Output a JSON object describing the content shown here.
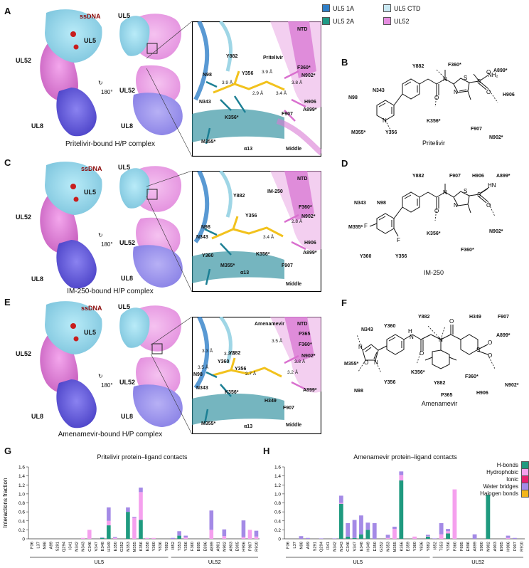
{
  "panel_letters": [
    "A",
    "B",
    "C",
    "D",
    "E",
    "F",
    "G",
    "H"
  ],
  "legend": [
    {
      "label": "UL5 1A",
      "color": "#2f7fc8"
    },
    {
      "label": "UL5 CTD",
      "color": "#c9e8f2"
    },
    {
      "label": "UL5 2A",
      "color": "#1f9a85"
    },
    {
      "label": "UL52",
      "color": "#e58de0"
    }
  ],
  "rows": [
    {
      "caption": "Pritelivir-bound H/P complex",
      "map_labels": {
        "ssdna": "ssDNA",
        "ul5": "UL5",
        "ul52": "UL52",
        "ul8": "UL8",
        "ul5b": "UL5",
        "ul52b": "UL52",
        "ul8b": "UL8",
        "rot": "180°"
      },
      "zoom_labels": [
        "NTD",
        "Y882",
        "Pritelivir",
        "F360*",
        "N902*",
        "Y356",
        "N98",
        "N343",
        "H906",
        "A899*",
        "K356*",
        "F907",
        "M355*",
        "α13",
        "Middle"
      ],
      "distances": [
        "3.9 Å",
        "3.9 Å",
        "2.9 Å",
        "3.8 Å",
        "3.4 Å"
      ],
      "chem_name": "Pritelivir",
      "chem_labels": [
        "Y882",
        "F360*",
        "A899*",
        "N343",
        "H906",
        "N98",
        "K356*",
        "M355*",
        "Y356",
        "F907",
        "N902*"
      ]
    },
    {
      "caption": "IM-250-bound H/P complex",
      "map_labels": {
        "ssdna": "ssDNA",
        "ul5": "UL5",
        "ul52": "UL52",
        "ul8": "UL8",
        "ul5b": "UL5",
        "ul52b": "UL52",
        "ul8b": "UL8",
        "rot": "180°"
      },
      "zoom_labels": [
        "NTD",
        "Y882",
        "IM-250",
        "F360*",
        "N98",
        "Y356",
        "N902*",
        "N343",
        "H906",
        "Y360",
        "K356*",
        "A899*",
        "M355*",
        "F907",
        "α13",
        "Middle"
      ],
      "distances": [
        "2.8 Å",
        "3.4 Å"
      ],
      "chem_name": "IM-250",
      "chem_labels": [
        "Y882",
        "F907",
        "H906",
        "A899*",
        "N343",
        "N98",
        "M355*",
        "K356*",
        "N902*",
        "Y360",
        "Y356",
        "F360*"
      ]
    },
    {
      "caption": "Amenamevir-bound H/P complex",
      "map_labels": {
        "ssdna": "ssDNA",
        "ul5": "UL5",
        "ul52": "UL52",
        "ul8": "UL8",
        "ul5b": "UL5",
        "ul52b": "UL52",
        "ul8b": "UL8",
        "rot": "180°"
      },
      "zoom_labels": [
        "Amenamevir",
        "NTD",
        "Y882",
        "P365",
        "F360*",
        "Y360",
        "Y356",
        "N98",
        "N902*",
        "N343",
        "K356*",
        "A899*",
        "H349",
        "F907",
        "M355*",
        "α13",
        "Middle"
      ],
      "distances": [
        "3.5 Å",
        "3.3 Å",
        "3.3 Å",
        "3.8 Å",
        "3.5 Å",
        "2.7 Å",
        "3.2 Å"
      ],
      "chem_name": "Amenamevir",
      "chem_labels": [
        "Y882",
        "H349",
        "F907",
        "N343",
        "Y360",
        "A899*",
        "M355*",
        "K356*",
        "Y882",
        "F360*",
        "P365",
        "H906",
        "N902*",
        "N98",
        "Y356"
      ]
    }
  ],
  "chart_data": [
    {
      "type": "bar",
      "stacked": true,
      "title": "Pritelivir protein–ligand contacts",
      "ylabel": "Interactions fraction",
      "ylim": [
        0,
        1.6
      ],
      "yticks": [
        "0",
        "0.2",
        "0.4",
        "0.6",
        "0.8",
        "1.0",
        "1.2",
        "1.4",
        "1.6"
      ],
      "categories": [
        "F36",
        "L37",
        "N98",
        "A99",
        "S291",
        "Q294",
        "I341",
        "N342",
        "N343",
        "C346",
        "V347",
        "E348",
        "H349",
        "E350",
        "G352",
        "N353",
        "M355",
        "K356",
        "E358",
        "Y360",
        "Y836",
        "Y882",
        "I852",
        "T353",
        "Y356",
        "F360",
        "E895",
        "E896",
        "A899",
        "A901",
        "N902",
        "A903",
        "E905",
        "H906",
        "F907",
        "R910"
      ],
      "groups": [
        {
          "label": "UL5",
          "from": 0,
          "to": 21
        },
        {
          "label": "UL52",
          "from": 22,
          "to": 35
        }
      ],
      "series": [
        {
          "name": "H-bonds",
          "color": "#1f9a7f",
          "values": [
            0,
            0,
            0,
            0,
            0,
            0,
            0,
            0,
            0,
            0,
            0,
            0.02,
            0.3,
            0,
            0,
            0.6,
            0,
            0.42,
            0,
            0,
            0,
            0,
            0,
            0.07,
            0,
            0,
            0,
            0,
            0,
            0,
            0,
            0,
            0,
            0,
            0,
            0
          ]
        },
        {
          "name": "Hydrophobic",
          "color": "#f5a0ee",
          "values": [
            0,
            0,
            0,
            0,
            0,
            0,
            0,
            0,
            0.02,
            0.2,
            0,
            0,
            0.1,
            0.02,
            0,
            0,
            0.47,
            0.62,
            0.02,
            0.02,
            0,
            0,
            0,
            0,
            0.03,
            0,
            0,
            0,
            0.2,
            0,
            0.06,
            0,
            0,
            0.04,
            0.2,
            0.05
          ]
        },
        {
          "name": "Ionic",
          "color": "#e8206e",
          "values": [
            0,
            0,
            0,
            0,
            0,
            0,
            0,
            0,
            0,
            0,
            0,
            0,
            0,
            0,
            0,
            0,
            0,
            0,
            0,
            0,
            0,
            0,
            0,
            0,
            0,
            0,
            0,
            0,
            0,
            0,
            0,
            0,
            0,
            0,
            0,
            0
          ]
        },
        {
          "name": "Water bridges",
          "color": "#a48ae6",
          "values": [
            0,
            0,
            0,
            0,
            0,
            0,
            0,
            0,
            0,
            0,
            0,
            0.01,
            0.3,
            0.02,
            0,
            0.1,
            0.02,
            0.1,
            0,
            0,
            0,
            0,
            0.02,
            0.1,
            0.04,
            0,
            0,
            0,
            0.43,
            0,
            0.15,
            0,
            0,
            0.37,
            0,
            0.13
          ]
        },
        {
          "name": "Halogen bonds",
          "color": "#f2b61b",
          "values": [
            0,
            0,
            0,
            0,
            0,
            0,
            0,
            0,
            0,
            0,
            0,
            0,
            0,
            0,
            0,
            0,
            0,
            0,
            0,
            0,
            0,
            0,
            0,
            0,
            0,
            0,
            0,
            0,
            0,
            0,
            0,
            0,
            0,
            0,
            0,
            0
          ]
        }
      ]
    },
    {
      "type": "bar",
      "stacked": true,
      "title": "Amenamevir protein–ligand contacts",
      "ylabel": "",
      "ylim": [
        0,
        1.6
      ],
      "yticks": [
        "0",
        "0.2",
        "0.4",
        "0.6",
        "0.8",
        "1.0",
        "1.2",
        "1.4",
        "1.6"
      ],
      "categories": [
        "F36",
        "L37",
        "N98",
        "A99",
        "S291",
        "Q294",
        "I341",
        "N342",
        "N343",
        "C346",
        "V347",
        "E348",
        "H349",
        "E350",
        "G352",
        "N353",
        "M355",
        "K356",
        "E359",
        "Y360",
        "Y836",
        "Y882",
        "I852",
        "T353",
        "Y356",
        "F360",
        "F895",
        "E896",
        "A899",
        "S900",
        "N902",
        "A903",
        "E905",
        "H906",
        "F907",
        "R910"
      ],
      "groups": [
        {
          "label": "UL5",
          "from": 0,
          "to": 21
        },
        {
          "label": "UL52",
          "from": 22,
          "to": 35
        }
      ],
      "legend": [
        "H-bonds",
        "Hydrophobic",
        "Ionic",
        "Water bridges",
        "Halogen bonds"
      ],
      "series": [
        {
          "name": "H-bonds",
          "color": "#1f9a7f",
          "values": [
            0,
            0,
            0,
            0,
            0,
            0,
            0,
            0,
            0.78,
            0.05,
            0.02,
            0.1,
            0.2,
            0,
            0,
            0,
            0,
            1.3,
            0,
            0,
            0,
            0.05,
            0,
            0,
            0.12,
            0,
            0,
            0,
            0,
            0,
            0.98,
            0,
            0,
            0,
            0,
            0
          ]
        },
        {
          "name": "Hydrophobic",
          "color": "#f5a0ee",
          "values": [
            0,
            0,
            0,
            0,
            0,
            0,
            0,
            0,
            0.02,
            0,
            0,
            0,
            0,
            0,
            0,
            0.02,
            0.22,
            0.12,
            0,
            0.05,
            0,
            0.01,
            0,
            0.1,
            0.05,
            1.1,
            0,
            0,
            0,
            0,
            0,
            0,
            0,
            0.02,
            0,
            0
          ]
        },
        {
          "name": "Ionic",
          "color": "#e8206e",
          "values": [
            0,
            0,
            0,
            0,
            0,
            0,
            0,
            0,
            0,
            0,
            0,
            0,
            0,
            0,
            0,
            0,
            0,
            0,
            0,
            0,
            0,
            0,
            0,
            0,
            0,
            0,
            0,
            0,
            0,
            0,
            0,
            0,
            0,
            0,
            0,
            0
          ]
        },
        {
          "name": "Water bridges",
          "color": "#a48ae6",
          "values": [
            0,
            0,
            0.06,
            0.02,
            0,
            0.01,
            0,
            0.01,
            0.16,
            0.3,
            0.4,
            0.42,
            0.16,
            0.35,
            0,
            0.07,
            0.05,
            0.08,
            0,
            0,
            0,
            0.03,
            0.01,
            0.25,
            0.05,
            0,
            0,
            0,
            0.1,
            0,
            0,
            0,
            0,
            0.05,
            0.02,
            0
          ]
        },
        {
          "name": "Halogen bonds",
          "color": "#f2b61b",
          "values": [
            0,
            0,
            0,
            0,
            0,
            0,
            0,
            0,
            0,
            0,
            0,
            0,
            0,
            0,
            0,
            0,
            0,
            0,
            0,
            0,
            0,
            0,
            0,
            0,
            0,
            0,
            0,
            0,
            0,
            0,
            0,
            0,
            0,
            0,
            0,
            0
          ]
        }
      ]
    }
  ]
}
